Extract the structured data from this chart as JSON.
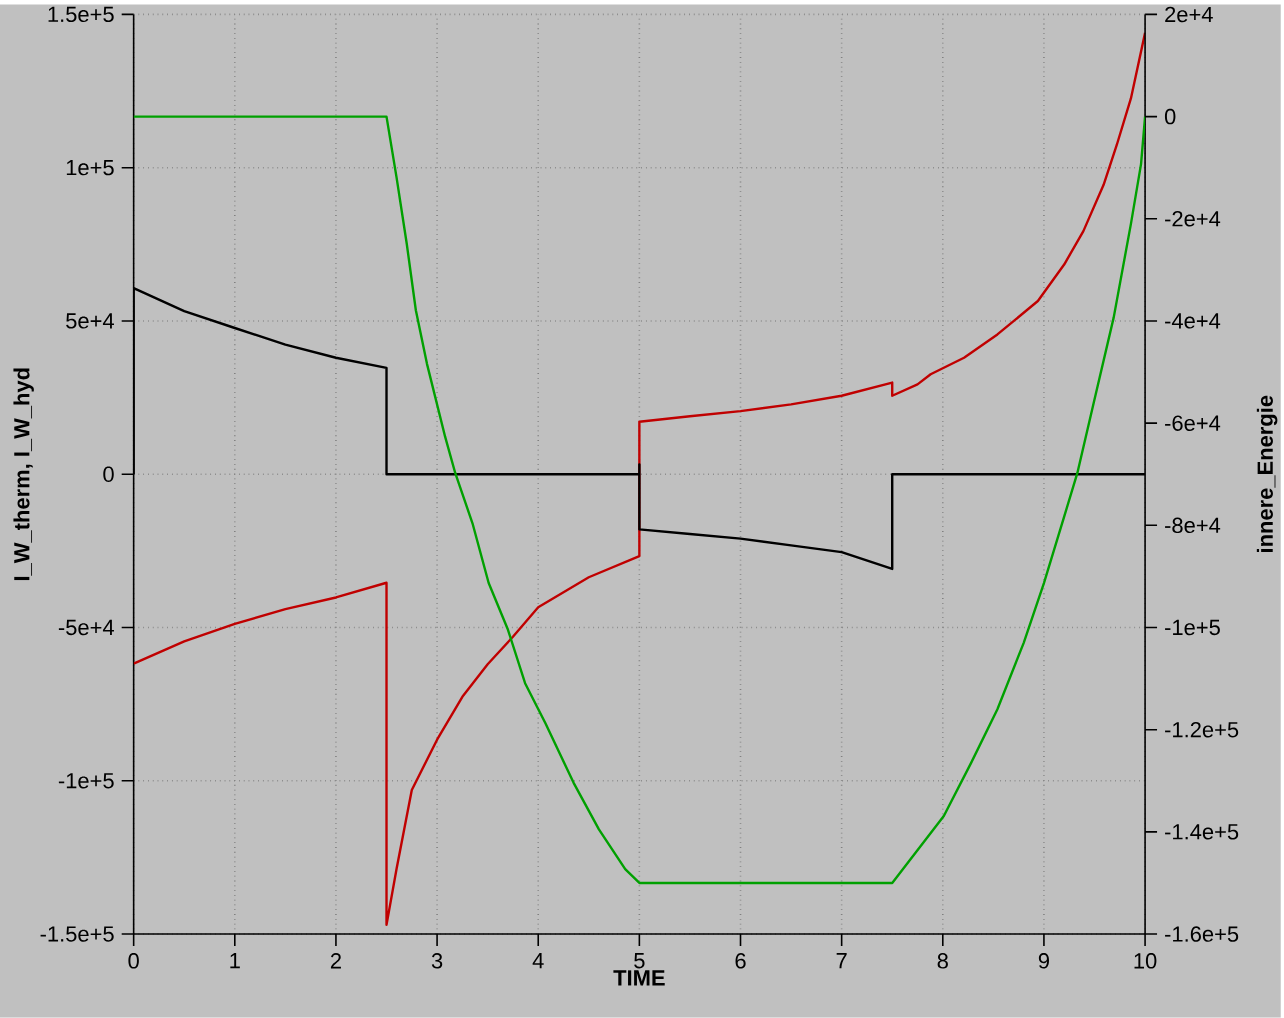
{
  "chart_data": {
    "type": "line",
    "xlabel": "TIME",
    "ylabel": "I_W_therm, I_W_hyd",
    "y2label": "innere_Energie",
    "xlim": [
      0,
      10
    ],
    "xticks": [
      0,
      1,
      2,
      3,
      4,
      5,
      6,
      7,
      8,
      9,
      10
    ],
    "ylim": [
      -150000,
      150000
    ],
    "yticks": [
      {
        "value": -150000,
        "label": "-1.5e+5"
      },
      {
        "value": -100000,
        "label": "-1e+5"
      },
      {
        "value": -50000,
        "label": "-5e+4"
      },
      {
        "value": 0,
        "label": "0"
      },
      {
        "value": 50000,
        "label": "5e+4"
      },
      {
        "value": 100000,
        "label": "1e+5"
      },
      {
        "value": 150000,
        "label": "1.5e+5"
      }
    ],
    "y2lim": [
      -160000,
      20000
    ],
    "y2ticks": [
      {
        "value": -160000,
        "label": "-1.6e+5"
      },
      {
        "value": -140000,
        "label": "-1.4e+5"
      },
      {
        "value": -120000,
        "label": "-1.2e+5"
      },
      {
        "value": -100000,
        "label": "-1e+5"
      },
      {
        "value": -80000,
        "label": "-8e+4"
      },
      {
        "value": -60000,
        "label": "-6e+4"
      },
      {
        "value": -40000,
        "label": "-4e+4"
      },
      {
        "value": -20000,
        "label": "-2e+4"
      },
      {
        "value": 0,
        "label": "0"
      },
      {
        "value": 20000,
        "label": "2e+4"
      }
    ],
    "grid": true,
    "series": [
      {
        "color": "#000000",
        "x": [
          0,
          0,
          0.5,
          1,
          1.5,
          2,
          2.5,
          2.5,
          5,
          5,
          5,
          5.5,
          6,
          6.5,
          7,
          7.5,
          7.5,
          10
        ],
        "values": [
          0,
          60700,
          53200,
          47700,
          42300,
          38000,
          34700,
          0,
          0,
          3200,
          -18000,
          -19500,
          -21000,
          -23200,
          -25400,
          -30900,
          0,
          0
        ]
      },
      {
        "color": "#c00000",
        "x": [
          0,
          0.5,
          1,
          1.5,
          2,
          2.5,
          2.5,
          2.6,
          2.75,
          3,
          3.25,
          3.5,
          3.75,
          4,
          4.5,
          5,
          5,
          5.5,
          6,
          6.5,
          7,
          7.5,
          7.5,
          7.75,
          7.88,
          8.21,
          8.54,
          8.94,
          9.2,
          9.39,
          9.59,
          9.72,
          9.86,
          10
        ],
        "values": [
          -61800,
          -54500,
          -48800,
          -44000,
          -40200,
          -35400,
          -147000,
          -128600,
          -103000,
          -86600,
          -72600,
          -62000,
          -53000,
          -43400,
          -33600,
          -26700,
          17100,
          18900,
          20600,
          22800,
          25600,
          29900,
          25600,
          29300,
          32600,
          38000,
          45600,
          56500,
          68400,
          79300,
          94400,
          107400,
          122600,
          144000
        ]
      },
      {
        "color": "#00a000",
        "axis": "y2",
        "x": [
          0,
          2.5,
          2.6,
          2.7,
          2.79,
          2.9,
          3.08,
          3.18,
          3.35,
          3.51,
          3.7,
          3.87,
          4.07,
          4.35,
          4.6,
          4.86,
          5,
          7.5,
          8.01,
          8.28,
          8.54,
          8.8,
          9,
          9.2,
          9.33,
          9.49,
          9.69,
          9.86,
          9.96,
          10
        ],
        "values": [
          0,
          0,
          -12000,
          -24900,
          -37900,
          -48400,
          -62700,
          -69800,
          -79600,
          -91300,
          -100400,
          -110900,
          -118700,
          -130400,
          -139500,
          -147300,
          -150000,
          -150000,
          -136900,
          -126500,
          -116000,
          -103000,
          -91300,
          -78300,
          -69800,
          -56200,
          -39300,
          -21000,
          -9300,
          0
        ]
      }
    ]
  }
}
